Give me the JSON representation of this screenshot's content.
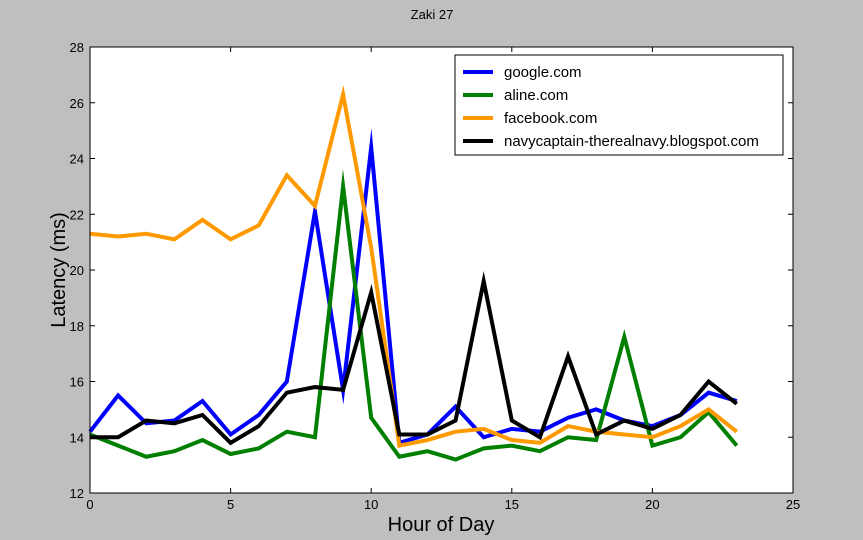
{
  "chart_data": {
    "type": "line",
    "title": "Zaki 27",
    "xlabel": "Hour of Day",
    "ylabel": "Latency (ms)",
    "xlim": [
      0,
      25
    ],
    "ylim": [
      12,
      28
    ],
    "xticks": [
      0,
      5,
      10,
      15,
      20,
      25
    ],
    "yticks": [
      12,
      14,
      16,
      18,
      20,
      22,
      24,
      26,
      28
    ],
    "grid": false,
    "legend_position": "top-right",
    "x": [
      0,
      1,
      2,
      3,
      4,
      5,
      6,
      7,
      8,
      9,
      10,
      11,
      12,
      13,
      14,
      15,
      16,
      17,
      18,
      19,
      20,
      21,
      22,
      23
    ],
    "series": [
      {
        "name": "google.com",
        "color": "#0000ff",
        "values": [
          14.2,
          15.5,
          14.5,
          14.6,
          15.3,
          14.1,
          14.8,
          16.0,
          22.1,
          15.7,
          24.4,
          13.8,
          14.1,
          15.1,
          14.0,
          14.3,
          14.2,
          14.7,
          15.0,
          14.6,
          14.4,
          14.8,
          15.6,
          15.3
        ]
      },
      {
        "name": "aline.com",
        "color": "#007f00",
        "values": [
          14.1,
          13.7,
          13.3,
          13.5,
          13.9,
          13.4,
          13.6,
          14.2,
          14.0,
          23.0,
          14.7,
          13.3,
          13.5,
          13.2,
          13.6,
          13.7,
          13.5,
          14.0,
          13.9,
          17.6,
          13.7,
          14.0,
          14.9,
          13.7
        ]
      },
      {
        "name": "facebook.com",
        "color": "#ff9900",
        "values": [
          21.3,
          21.2,
          21.3,
          21.1,
          21.8,
          21.1,
          21.6,
          23.4,
          22.3,
          26.3,
          20.8,
          13.7,
          13.9,
          14.2,
          14.3,
          13.9,
          13.8,
          14.4,
          14.2,
          14.1,
          14.0,
          14.4,
          15.0,
          14.2
        ]
      },
      {
        "name": "navycaptain-therealnavy.blogspot.com",
        "color": "#000000",
        "values": [
          14.0,
          14.0,
          14.6,
          14.5,
          14.8,
          13.8,
          14.4,
          15.6,
          15.8,
          15.7,
          19.2,
          14.1,
          14.1,
          14.6,
          19.6,
          14.6,
          14.0,
          16.9,
          14.1,
          14.6,
          14.3,
          14.8,
          16.0,
          15.2
        ]
      }
    ]
  }
}
